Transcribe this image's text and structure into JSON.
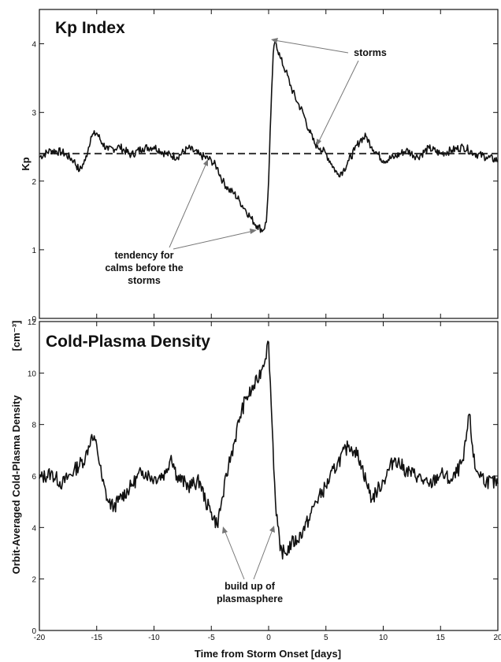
{
  "chart_data": [
    {
      "type": "line",
      "title": "Kp Index",
      "xlabel": "",
      "ylabel": "Kp",
      "xlim": [
        -20,
        20
      ],
      "ylim": [
        0,
        4.5
      ],
      "x_ticks": [
        -20,
        -15,
        -10,
        -5,
        0,
        5,
        10,
        15,
        20
      ],
      "y_ticks": [
        0,
        1,
        2,
        3,
        4
      ],
      "grid": false,
      "reference_line": {
        "y": 2.4,
        "style": "dashed"
      },
      "series": [
        {
          "x": [
            -20,
            -19,
            -18,
            -17,
            -16.5,
            -16,
            -15.5,
            -15,
            -14.5,
            -14,
            -13,
            -12,
            -11,
            -10,
            -9,
            -8,
            -7,
            -6,
            -5,
            -4.5,
            -4,
            -3.5,
            -3,
            -2.5,
            -2,
            -1.5,
            -1,
            -0.5,
            -0.2,
            0,
            0.2,
            0.4,
            0.6,
            1,
            1.5,
            2,
            2.5,
            3,
            3.5,
            4,
            4.5,
            5,
            5.5,
            6,
            6.5,
            7,
            7.5,
            8,
            8.5,
            9,
            9.5,
            10,
            11,
            12,
            13,
            14,
            15,
            16,
            17,
            18,
            19,
            20
          ],
          "y": [
            2.35,
            2.45,
            2.42,
            2.3,
            2.15,
            2.3,
            2.65,
            2.7,
            2.55,
            2.45,
            2.5,
            2.38,
            2.48,
            2.5,
            2.4,
            2.35,
            2.48,
            2.38,
            2.3,
            2.2,
            2.0,
            1.88,
            1.82,
            1.7,
            1.58,
            1.45,
            1.35,
            1.28,
            1.4,
            2.0,
            3.0,
            3.85,
            4.05,
            3.8,
            3.6,
            3.35,
            3.15,
            3.0,
            2.75,
            2.55,
            2.48,
            2.4,
            2.25,
            2.1,
            2.15,
            2.3,
            2.45,
            2.6,
            2.65,
            2.5,
            2.4,
            2.3,
            2.35,
            2.45,
            2.35,
            2.48,
            2.4,
            2.45,
            2.5,
            2.4,
            2.35,
            2.3
          ]
        }
      ],
      "annotations": [
        {
          "text": "storms",
          "x": 9.5,
          "y": 3.9
        },
        {
          "text": "tendency for calms before the storms",
          "x": -6.5,
          "y": 0.85
        }
      ]
    },
    {
      "type": "line",
      "title": "Cold-Plasma Density",
      "xlabel": "Time from Storm Onset [days]",
      "ylabel": "Orbit-Averaged Cold-Plasma Density [cm⁻³]",
      "xlim": [
        -20,
        20
      ],
      "ylim": [
        0,
        12
      ],
      "x_ticks": [
        -20,
        -15,
        -10,
        -5,
        0,
        5,
        10,
        15,
        20
      ],
      "y_ticks": [
        0,
        2,
        4,
        6,
        8,
        10,
        12
      ],
      "grid": false,
      "series": [
        {
          "x": [
            -20,
            -19,
            -18,
            -17,
            -16,
            -15.5,
            -15,
            -14.5,
            -14,
            -13.5,
            -13,
            -12,
            -11,
            -10,
            -9,
            -8.5,
            -8,
            -7,
            -6,
            -5.5,
            -5,
            -4.5,
            -4,
            -3.5,
            -3,
            -2.5,
            -2,
            -1.5,
            -1,
            -0.5,
            0,
            0.3,
            0.6,
            1,
            1.5,
            2,
            2.5,
            3,
            3.5,
            4,
            5,
            6,
            7,
            7.5,
            8,
            8.5,
            9,
            10,
            11,
            12,
            13,
            14,
            15,
            16,
            17,
            17.5,
            18,
            19,
            20
          ],
          "y": [
            5.9,
            6.1,
            5.7,
            6.2,
            6.7,
            7.5,
            7.2,
            5.8,
            5.0,
            4.8,
            5.1,
            5.6,
            6.2,
            5.9,
            6.1,
            6.8,
            6.0,
            5.6,
            5.8,
            5.0,
            4.6,
            4.1,
            5.2,
            6.4,
            7.3,
            8.3,
            9.0,
            9.3,
            9.7,
            10.3,
            11.2,
            8.0,
            5.0,
            3.1,
            3.0,
            3.4,
            3.5,
            3.9,
            4.3,
            4.9,
            5.6,
            6.5,
            7.2,
            7.0,
            6.6,
            5.8,
            5.1,
            5.8,
            6.7,
            6.2,
            6.0,
            5.6,
            6.1,
            5.8,
            6.6,
            8.4,
            6.3,
            5.8,
            5.7
          ]
        }
      ],
      "annotations": [
        {
          "text": "build up of plasmasphere",
          "x": 3,
          "y": 1.4
        }
      ]
    }
  ],
  "panel1": {
    "title": "Kp Index",
    "ylabel": "Kp",
    "annotation_storms": "storms",
    "annotation_calms": [
      "tendency for",
      "calms before the",
      "storms"
    ]
  },
  "panel2": {
    "title": "Cold-Plasma Density",
    "ylabel_main": "Orbit-Averaged Cold-Plasma Density",
    "ylabel_units": "[cm⁻³]",
    "xlabel": "Time from Storm Onset    [days]",
    "annotation_build": [
      "build up of",
      "plasmasphere"
    ]
  }
}
